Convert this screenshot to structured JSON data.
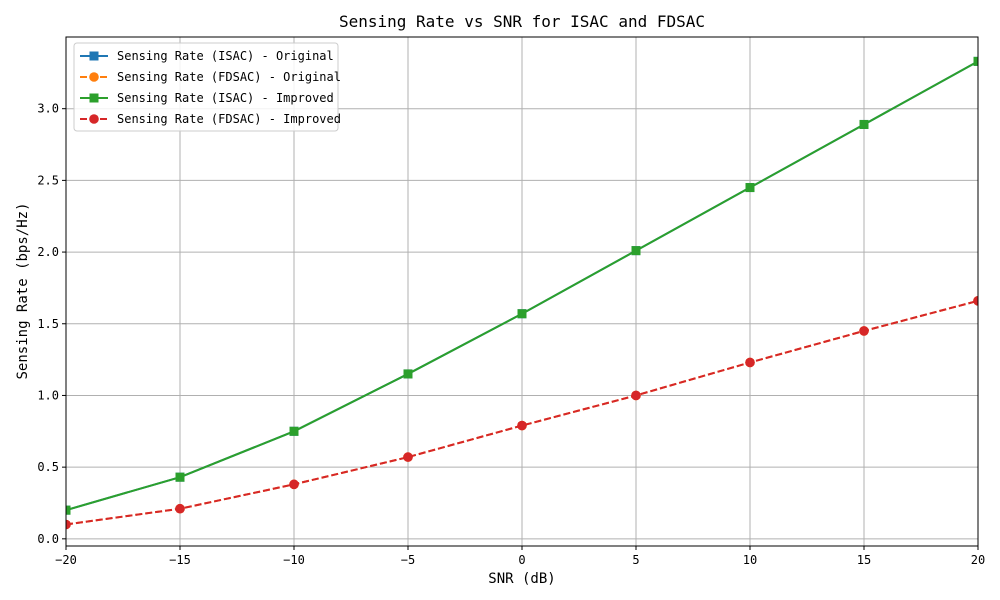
{
  "chart_data": {
    "type": "line",
    "title": "Sensing Rate vs SNR for ISAC and FDSAC",
    "xlabel": "SNR (dB)",
    "ylabel": "Sensing Rate (bps/Hz)",
    "xlim": [
      -20,
      20
    ],
    "ylim": [
      -0.05,
      3.5
    ],
    "xticks": [
      -20,
      -15,
      -10,
      -5,
      0,
      5,
      10,
      15,
      20
    ],
    "xtick_labels": [
      "−20",
      "−15",
      "−10",
      "−5",
      "0",
      "5",
      "10",
      "15",
      "20"
    ],
    "yticks": [
      0.0,
      0.5,
      1.0,
      1.5,
      2.0,
      2.5,
      3.0
    ],
    "ytick_labels": [
      "0.0",
      "0.5",
      "1.0",
      "1.5",
      "2.0",
      "2.5",
      "3.0"
    ],
    "grid": true,
    "legend_position": "top-left",
    "x": [
      -20,
      -15,
      -10,
      -5,
      0,
      5,
      10,
      15,
      20
    ],
    "series": [
      {
        "name": "Sensing Rate (ISAC) - Original",
        "color": "#1f77b4",
        "style": "solid",
        "marker": "square",
        "values": [
          0.2,
          0.43,
          0.75,
          1.15,
          1.57,
          2.01,
          2.45,
          2.89,
          3.33
        ]
      },
      {
        "name": "Sensing Rate (FDSAC) - Original",
        "color": "#ff7f0e",
        "style": "dashed",
        "marker": "circle",
        "values": [
          0.1,
          0.21,
          0.38,
          0.57,
          0.79,
          1.0,
          1.23,
          1.45,
          1.66
        ]
      },
      {
        "name": "Sensing Rate (ISAC) - Improved",
        "color": "#2ca02c",
        "style": "solid",
        "marker": "square",
        "values": [
          0.2,
          0.43,
          0.75,
          1.15,
          1.57,
          2.01,
          2.45,
          2.89,
          3.33
        ]
      },
      {
        "name": "Sensing Rate (FDSAC) - Improved",
        "color": "#d62728",
        "style": "dashed",
        "marker": "circle",
        "values": [
          0.1,
          0.21,
          0.38,
          0.57,
          0.79,
          1.0,
          1.23,
          1.45,
          1.66
        ]
      }
    ]
  }
}
